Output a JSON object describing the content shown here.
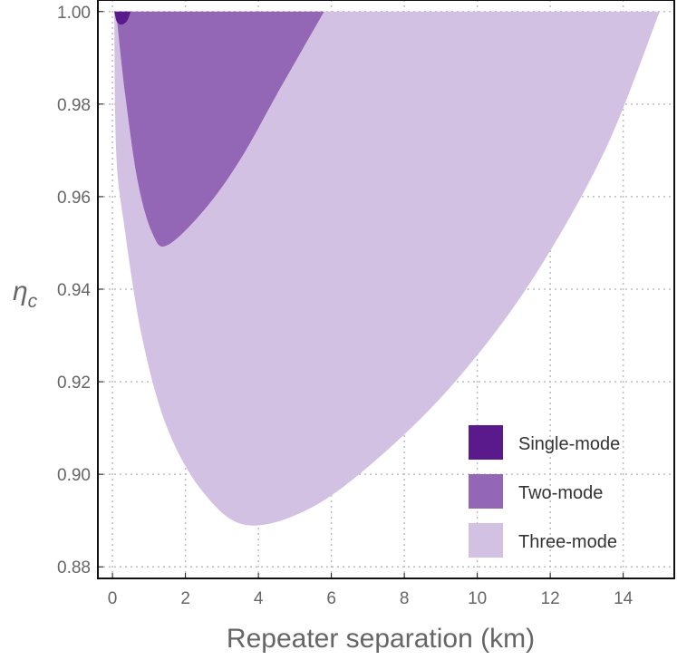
{
  "chart_data": {
    "type": "area",
    "title": "",
    "xlabel": "Repeater separation (km)",
    "ylabel_symbol": "η",
    "ylabel_subscript": "c",
    "xlim": [
      -0.4,
      15.4
    ],
    "ylim": [
      0.8775,
      1.0025
    ],
    "xticks": [
      0,
      2,
      4,
      6,
      8,
      10,
      12,
      14
    ],
    "xtick_labels": [
      "0",
      "2",
      "4",
      "6",
      "8",
      "10",
      "12",
      "14"
    ],
    "yticks": [
      0.88,
      0.9,
      0.92,
      0.94,
      0.96,
      0.98,
      1.0
    ],
    "ytick_labels": [
      "0.88",
      "0.90",
      "0.92",
      "0.94",
      "0.96",
      "0.98",
      "1.00"
    ],
    "grid": true,
    "legend_position": "bottom-right",
    "series": [
      {
        "name": "Three-mode",
        "color": "#d3c1e3",
        "region_boundary": [
          {
            "x": 0.05,
            "y": 1.0
          },
          {
            "x": 0.1,
            "y": 0.97
          },
          {
            "x": 0.3,
            "y": 0.955
          },
          {
            "x": 0.8,
            "y": 0.93
          },
          {
            "x": 1.5,
            "y": 0.91
          },
          {
            "x": 2.5,
            "y": 0.896
          },
          {
            "x": 3.7,
            "y": 0.889
          },
          {
            "x": 5.5,
            "y": 0.893
          },
          {
            "x": 7.5,
            "y": 0.905
          },
          {
            "x": 9.5,
            "y": 0.921
          },
          {
            "x": 11.5,
            "y": 0.942
          },
          {
            "x": 13.5,
            "y": 0.97
          },
          {
            "x": 15.0,
            "y": 1.0
          }
        ]
      },
      {
        "name": "Two-mode",
        "color": "#9466b6",
        "region_boundary": [
          {
            "x": 0.1,
            "y": 1.0
          },
          {
            "x": 0.35,
            "y": 0.982
          },
          {
            "x": 0.7,
            "y": 0.963
          },
          {
            "x": 1.1,
            "y": 0.952
          },
          {
            "x": 1.5,
            "y": 0.9495
          },
          {
            "x": 2.5,
            "y": 0.957
          },
          {
            "x": 3.5,
            "y": 0.968
          },
          {
            "x": 4.5,
            "y": 0.982
          },
          {
            "x": 5.8,
            "y": 1.0
          }
        ]
      },
      {
        "name": "Single-mode",
        "color": "#5a1a8c",
        "region_boundary": [
          {
            "x": 0.05,
            "y": 1.0
          },
          {
            "x": 0.12,
            "y": 0.9978
          },
          {
            "x": 0.25,
            "y": 0.9972
          },
          {
            "x": 0.4,
            "y": 0.998
          },
          {
            "x": 0.5,
            "y": 1.0
          }
        ]
      }
    ]
  }
}
